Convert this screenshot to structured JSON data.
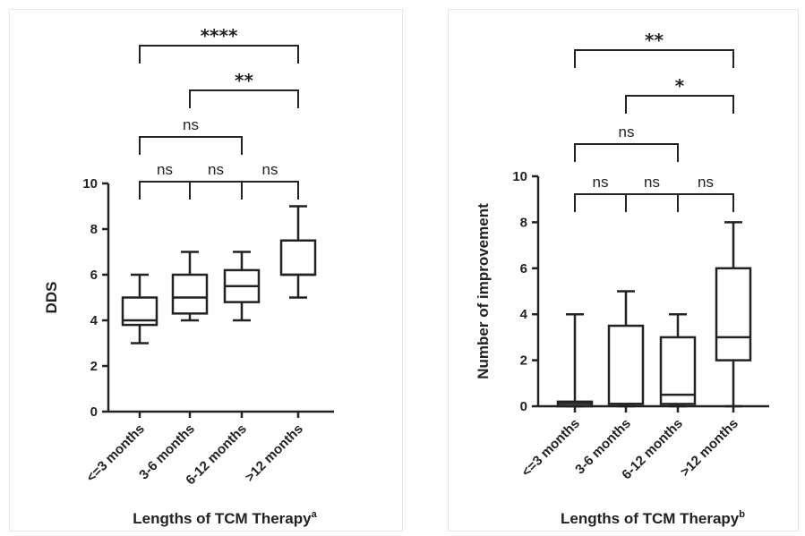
{
  "chart_data": [
    {
      "type": "boxplot",
      "ylabel": "DDS",
      "xlabel": "Lengths of TCM Therapy",
      "xlabel_superscript": "a",
      "ylim": [
        0,
        10
      ],
      "yticks": [
        "0",
        "2",
        "4",
        "6",
        "8",
        "10"
      ],
      "categories": [
        "<=3 months",
        "3-6 months",
        "6-12 months",
        ">12 months"
      ],
      "boxes": [
        {
          "min": 3,
          "q1": 3.8,
          "median": 4,
          "q3": 5,
          "max": 6
        },
        {
          "min": 4,
          "q1": 4.3,
          "median": 5,
          "q3": 6,
          "max": 7
        },
        {
          "min": 4,
          "q1": 4.8,
          "median": 5.5,
          "q3": 6.2,
          "max": 7
        },
        {
          "min": 5,
          "q1": 6,
          "median": 6,
          "q3": 7.5,
          "max": 9
        }
      ],
      "comparisons": [
        {
          "from": 0,
          "to": 1,
          "label": "ns"
        },
        {
          "from": 1,
          "to": 2,
          "label": "ns"
        },
        {
          "from": 2,
          "to": 3,
          "label": "ns"
        },
        {
          "from": 0,
          "to": 2,
          "label": "ns"
        },
        {
          "from": 1,
          "to": 3,
          "label": "**"
        },
        {
          "from": 0,
          "to": 3,
          "label": "****"
        }
      ]
    },
    {
      "type": "boxplot",
      "ylabel": "Number of improvement",
      "xlabel": "Lengths of TCM Therapy",
      "xlabel_superscript": "b",
      "ylim": [
        0,
        10
      ],
      "yticks": [
        "0",
        "2",
        "4",
        "6",
        "8",
        "10"
      ],
      "categories": [
        "<=3 months",
        "3-6 months",
        "6-12 months",
        ">12 months"
      ],
      "boxes": [
        {
          "min": 0,
          "q1": 0,
          "median": 0.1,
          "q3": 0.2,
          "max": 4
        },
        {
          "min": 0,
          "q1": 0.1,
          "median": 0.1,
          "q3": 3.5,
          "max": 5
        },
        {
          "min": 0,
          "q1": 0.1,
          "median": 0.5,
          "q3": 3,
          "max": 4
        },
        {
          "min": 0,
          "q1": 2,
          "median": 3,
          "q3": 6,
          "max": 8
        }
      ],
      "comparisons": [
        {
          "from": 0,
          "to": 1,
          "label": "ns"
        },
        {
          "from": 1,
          "to": 2,
          "label": "ns"
        },
        {
          "from": 2,
          "to": 3,
          "label": "ns"
        },
        {
          "from": 0,
          "to": 2,
          "label": "ns"
        },
        {
          "from": 1,
          "to": 3,
          "label": "*"
        },
        {
          "from": 0,
          "to": 3,
          "label": "**"
        }
      ]
    }
  ]
}
